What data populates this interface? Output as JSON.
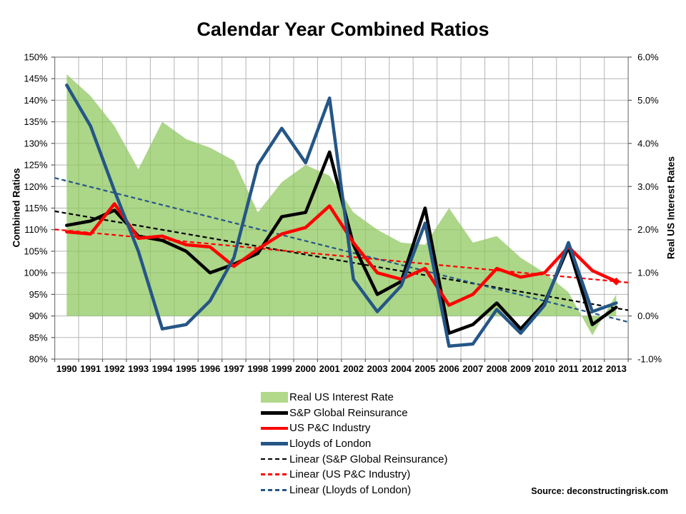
{
  "title": "Calendar Year Combined Ratios",
  "source": "Source: deconstructingrisk.com",
  "colors": {
    "area_green": "#8cc65a",
    "black": "#000000",
    "red": "#ff0000",
    "blue": "#255686",
    "grid": "#b5b5b5",
    "border": "#808080",
    "tick": "#595959"
  },
  "axes": {
    "left": {
      "title": "Combined Ratios",
      "tick_labels": [
        "150%",
        "145%",
        "140%",
        "135%",
        "130%",
        "125%",
        "120%",
        "115%",
        "110%",
        "105%",
        "100%",
        "95%",
        "90%",
        "85%",
        "80%"
      ],
      "tick_values": [
        150,
        145,
        140,
        135,
        130,
        125,
        120,
        115,
        110,
        105,
        100,
        95,
        90,
        85,
        80
      ]
    },
    "right": {
      "title": "Real US Interest Rates",
      "tick_labels": [
        "6.0%",
        "5.0%",
        "4.0%",
        "3.0%",
        "2.0%",
        "1.0%",
        "0.0%",
        "-1.0%"
      ],
      "tick_values": [
        6,
        5,
        4,
        3,
        2,
        1,
        0,
        -1
      ]
    },
    "x": {
      "tick_labels": [
        "1990",
        "1991",
        "1992",
        "1993",
        "1994",
        "1995",
        "1996",
        "1997",
        "1998",
        "1999",
        "2000",
        "2001",
        "2002",
        "2003",
        "2004",
        "2005",
        "2006",
        "2007",
        "2008",
        "2009",
        "2010",
        "2011",
        "2012",
        "2013"
      ]
    }
  },
  "chart_data": {
    "type": "line",
    "categories": [
      "1990",
      "1991",
      "1992",
      "1993",
      "1994",
      "1995",
      "1996",
      "1997",
      "1998",
      "1999",
      "2000",
      "2001",
      "2002",
      "2003",
      "2004",
      "2005",
      "2006",
      "2007",
      "2008",
      "2009",
      "2010",
      "2011",
      "2012",
      "2013"
    ],
    "left_axis_range": [
      80,
      150
    ],
    "right_axis_range": [
      -1.0,
      6.0
    ],
    "grid": true,
    "legend_position": "bottom-left",
    "series": [
      {
        "name": "Real US Interest Rate",
        "type": "area",
        "axis": "right",
        "values": [
          5.6,
          5.1,
          4.4,
          3.4,
          4.5,
          4.1,
          3.9,
          3.6,
          2.4,
          3.1,
          3.5,
          3.25,
          2.4,
          2.0,
          1.7,
          1.65,
          2.5,
          1.7,
          1.85,
          1.35,
          1.0,
          0.55,
          -0.45,
          0.5
        ]
      },
      {
        "name": "S&P Global Reinsurance",
        "type": "line",
        "axis": "left",
        "values": [
          111,
          112,
          114.5,
          108.5,
          107.5,
          105,
          100,
          102,
          104.5,
          113,
          114,
          128,
          106.5,
          95,
          98,
          115,
          86,
          88,
          93,
          87,
          93,
          106,
          88,
          92
        ]
      },
      {
        "name": "US P&C Industry",
        "type": "line",
        "axis": "left",
        "values": [
          109.5,
          109,
          116,
          108,
          108.5,
          106.5,
          106,
          101.5,
          105.5,
          109,
          110.5,
          115.5,
          107,
          100,
          98.5,
          101,
          92.5,
          95,
          101,
          99,
          100,
          106,
          100.5,
          98
        ]
      },
      {
        "name": "Lloyds of London",
        "type": "line",
        "axis": "left",
        "values": [
          143.5,
          134,
          119,
          105,
          87,
          88,
          93.5,
          103.5,
          125,
          133.5,
          125.5,
          140.5,
          98.5,
          91,
          97,
          111.5,
          83,
          83.5,
          91.5,
          86,
          92.5,
          107,
          91,
          93
        ]
      }
    ],
    "trendlines": [
      {
        "name": "Linear (S&P Global Reinsurance)",
        "start_1990": 113.8,
        "end_2013": 91.8
      },
      {
        "name": "Linear (US P&C Industry)",
        "start_1990": 109.8,
        "end_2013": 98.0
      },
      {
        "name": "Linear (Lloyds of London)",
        "start_1990": 121.3,
        "end_2013": 89.3
      }
    ],
    "end_marker": {
      "series": "US P&C Industry",
      "year": "2013",
      "shape": "diamond"
    }
  },
  "legend": {
    "items": [
      {
        "label": "Real US Interest Rate",
        "swatch": "area",
        "color": "#b2d88a"
      },
      {
        "label": "S&P Global Reinsurance",
        "swatch": "line",
        "color": "#000000"
      },
      {
        "label": "US P&C Industry",
        "swatch": "line",
        "color": "#ff0000"
      },
      {
        "label": "Lloyds of London",
        "swatch": "line",
        "color": "#255686"
      },
      {
        "label": "Linear (S&P Global Reinsurance)",
        "swatch": "dash",
        "color": "#000000"
      },
      {
        "label": "Linear (US P&C Industry)",
        "swatch": "dash",
        "color": "#ff0000"
      },
      {
        "label": "Linear (Lloyds of London)",
        "swatch": "dash",
        "color": "#255686"
      }
    ]
  }
}
